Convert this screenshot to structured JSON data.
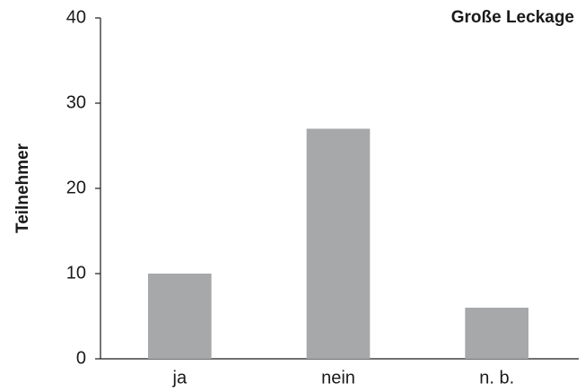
{
  "chart_data": {
    "type": "bar",
    "title": "Große Leckage",
    "y_label": "Teilnehmer",
    "categories": [
      "ja",
      "nein",
      "n. b."
    ],
    "values": [
      10,
      27,
      6
    ],
    "color": "#a7a8aa",
    "ylim": [
      0,
      40
    ],
    "yticks": [
      0,
      10,
      20,
      30,
      40
    ],
    "grid": false
  }
}
